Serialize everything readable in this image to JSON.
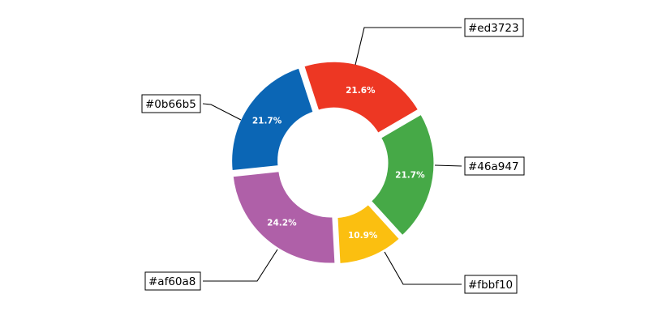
{
  "chart_data": {
    "type": "pie",
    "donut": true,
    "categories": [
      "#ed3723",
      "#46a947",
      "#fbbf10",
      "#af60a8",
      "#0b66b5"
    ],
    "values": [
      21.6,
      21.7,
      10.9,
      24.2,
      21.7
    ],
    "value_labels": [
      "21.6%",
      "21.7%",
      "10.9%",
      "24.2%",
      "21.7%"
    ],
    "colors": [
      "#ed3723",
      "#46a947",
      "#fbbf10",
      "#af60a8",
      "#0b66b5"
    ],
    "title": "",
    "exploded": true
  }
}
